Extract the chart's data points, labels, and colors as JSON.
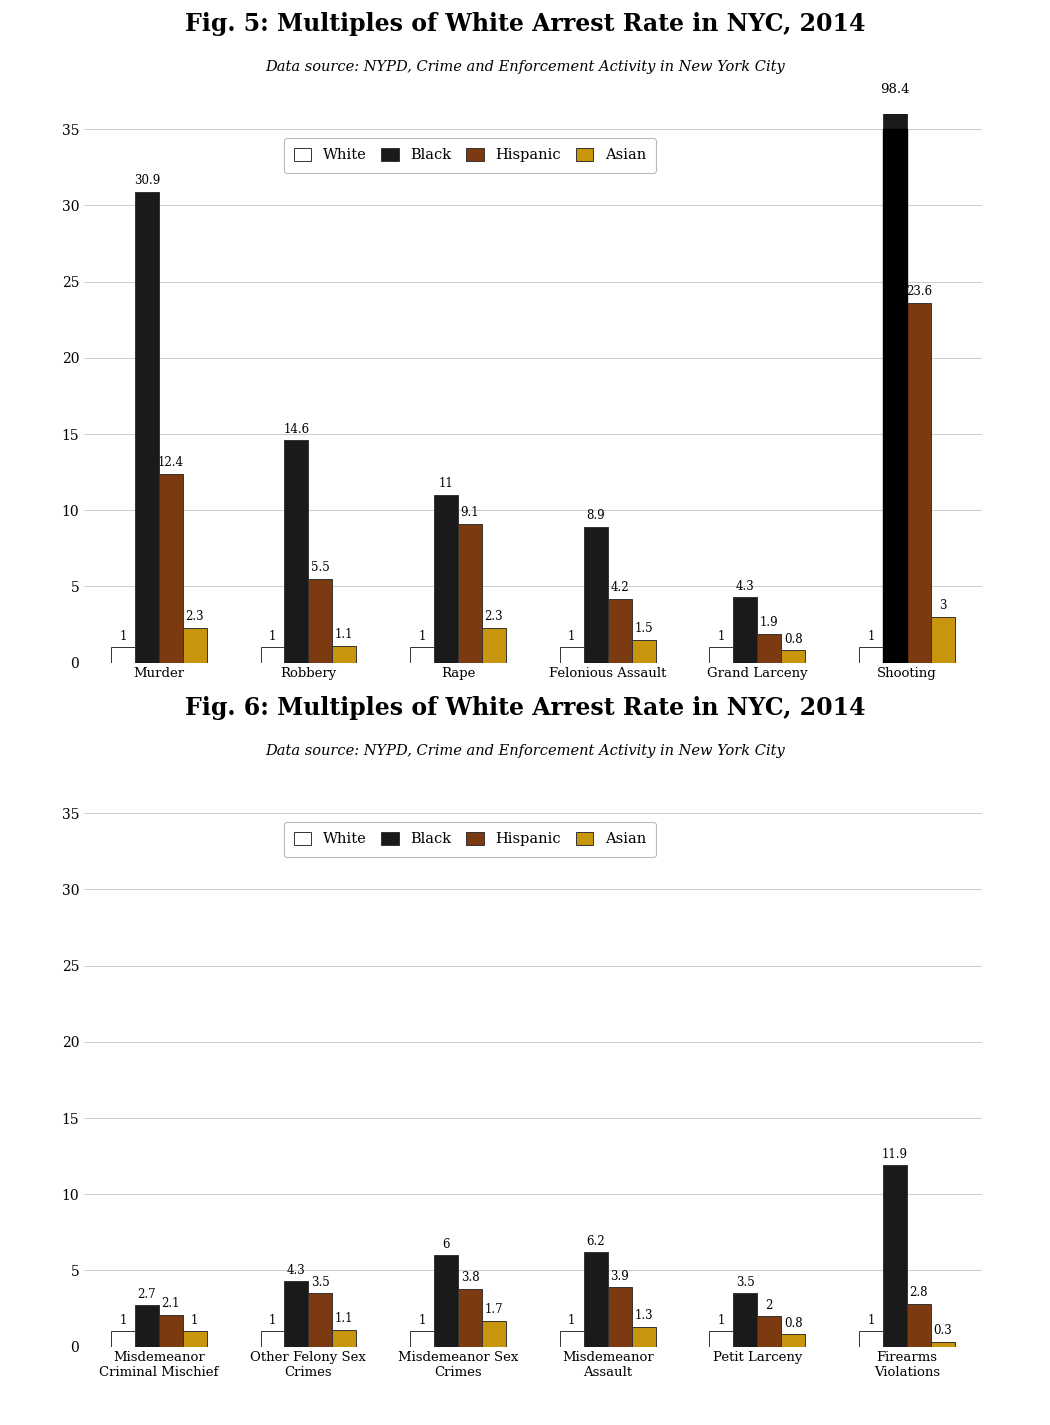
{
  "fig5_title": "Fig. 5: Multiples of White Arrest Rate in NYC, 2014",
  "fig6_title": "Fig. 6: Multiples of White Arrest Rate in NYC, 2014",
  "subtitle": "Data source: NYPD, Crime and Enforcement Activity in New York City",
  "fig5_categories": [
    "Murder",
    "Robbery",
    "Rape",
    "Felonious Assault",
    "Grand Larceny",
    "Shooting"
  ],
  "fig6_categories": [
    "Misdemeanor\nCriminal Mischief",
    "Other Felony Sex\nCrimes",
    "Misdemeanor Sex\nCrimes",
    "Misdemeanor\nAssault",
    "Petit Larceny",
    "Firearms\nViolations"
  ],
  "fig5_data": {
    "White": [
      1,
      1,
      1,
      1,
      1,
      1
    ],
    "Black": [
      30.9,
      14.6,
      11,
      8.9,
      4.3,
      98.4
    ],
    "Hispanic": [
      12.4,
      5.5,
      9.1,
      4.2,
      1.9,
      23.6
    ],
    "Asian": [
      2.3,
      1.1,
      2.3,
      1.5,
      0.8,
      3
    ]
  },
  "fig6_data": {
    "White": [
      1,
      1,
      1,
      1,
      1,
      1
    ],
    "Black": [
      2.7,
      4.3,
      6,
      6.2,
      3.5,
      11.9
    ],
    "Hispanic": [
      2.1,
      3.5,
      3.8,
      3.9,
      2,
      2.8
    ],
    "Asian": [
      1,
      1.1,
      1.7,
      1.3,
      0.8,
      0.3
    ]
  },
  "colors": {
    "White": "#ffffff",
    "Black": "#1a1a1a",
    "Hispanic": "#7b3a10",
    "Asian": "#c8960c"
  },
  "bar_edge_color": "#333333",
  "ylim": [
    0,
    36
  ],
  "yticks": [
    0,
    5,
    10,
    15,
    20,
    25,
    30,
    35
  ],
  "shooting_arrow_value": 98.4,
  "background_color": "#ffffff"
}
